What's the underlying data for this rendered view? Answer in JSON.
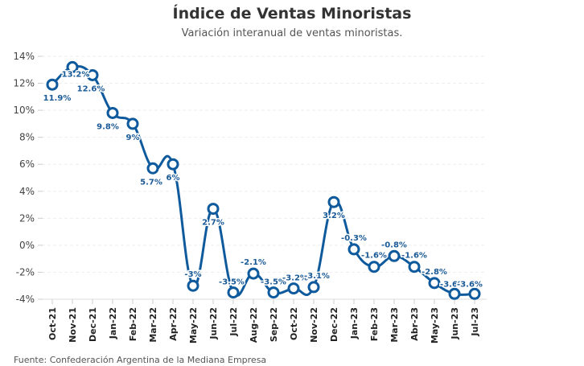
{
  "chart_data": {
    "type": "line",
    "title": "Índice de Ventas Minoristas",
    "subtitle": "Variación interanual de ventas minoristas.",
    "source": "Fuente: Confederación Argentina de la Mediana Empresa",
    "xlabel": "",
    "ylabel": "",
    "ylim": [
      -4,
      14
    ],
    "yticks": [
      -4,
      -2,
      0,
      2,
      4,
      6,
      8,
      10,
      12,
      14
    ],
    "ytick_labels": [
      "-4%",
      "-2%",
      "0%",
      "2%",
      "4%",
      "6%",
      "8%",
      "10%",
      "12%",
      "14%"
    ],
    "grid": true,
    "line_color": "#0f5a9c",
    "label_color": "#1a5a96",
    "categories": [
      "Oct-21",
      "Nov-21",
      "Dec-21",
      "Jan-22",
      "Feb-22",
      "Mar-22",
      "Apr-22",
      "May-22",
      "Jun-22",
      "Jul-22",
      "Aug-22",
      "Sep-22",
      "Oct-22",
      "Nov-22",
      "Dec-22",
      "Jan-23",
      "Feb-23",
      "Mar-23",
      "Abr-23",
      "May-23",
      "Jun-23",
      "Jul-23"
    ],
    "series": [
      {
        "name": "Variación interanual",
        "values": [
          11.9,
          13.2,
          12.6,
          9.8,
          9,
          5.7,
          6,
          -3,
          2.7,
          -3.5,
          -2.1,
          -3.5,
          -3.2,
          -3.1,
          3.2,
          -0.3,
          -1.6,
          -0.8,
          -1.6,
          -2.8,
          -3.6,
          -3.6
        ],
        "labels": [
          "11.9%",
          "13.2%",
          "12.6%",
          "9.8%",
          "9%",
          "5.7%",
          "6%",
          "-3%",
          "2.7%",
          "-3.5%",
          "-2.1%",
          "-3.5%",
          "-3.2%",
          "-3.1%",
          "3.2%",
          "-0.3%",
          "-1.6%",
          "-0.8%",
          "-1.6%",
          "-2.8%",
          "-3.6%",
          "-3.6%"
        ]
      }
    ]
  }
}
